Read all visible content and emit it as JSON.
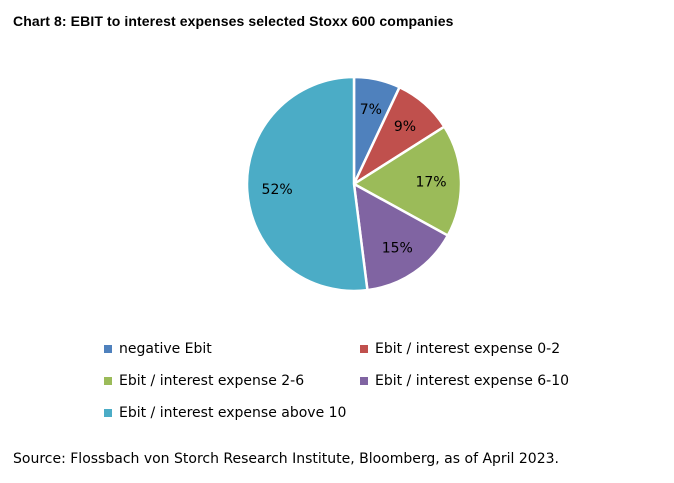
{
  "chart_data": {
    "type": "pie",
    "title": "Chart 8: EBIT to interest expenses selected Stoxx 600 companies",
    "categories": [
      "negative Ebit",
      "Ebit / interest expense 0-2",
      "Ebit / interest expense 2-6",
      "Ebit / interest expense 6-10",
      "Ebit / interest expense above 10"
    ],
    "values": [
      7,
      9,
      17,
      15,
      52
    ],
    "labels": [
      "7%",
      "9%",
      "17%",
      "15%",
      "52%"
    ],
    "colors": [
      "#4F81BD",
      "#C0504D",
      "#9BBB59",
      "#8064A2",
      "#4BACC6"
    ],
    "legend_position": "bottom"
  },
  "source": "Source: Flossbach von Storch Research Institute, Bloomberg, as of April 2023."
}
